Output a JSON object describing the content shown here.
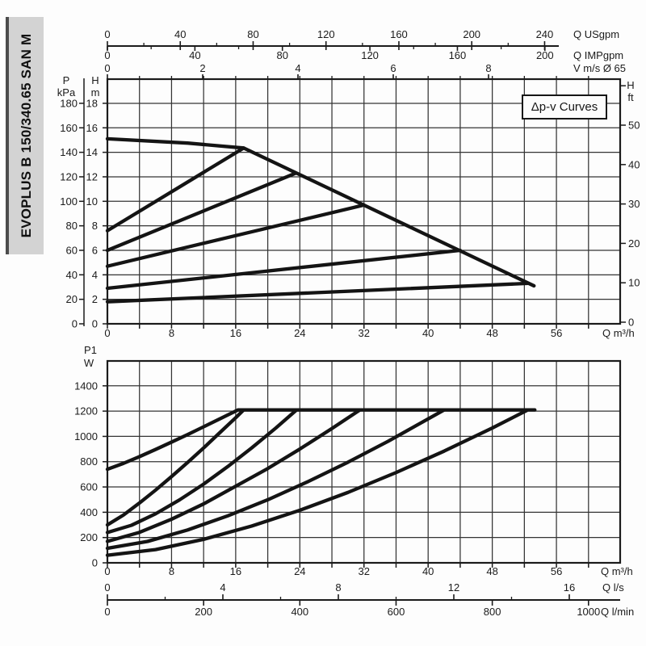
{
  "sidebar": {
    "model": "EVOPLUS B 150/340.65 SAN M"
  },
  "badge": "Δp-v Curves",
  "colors": {
    "ink": "#1b1b1b",
    "grid": "#343434",
    "curve": "#141414",
    "sidebar_bg": "#d3d3d3",
    "sidebar_edge": "#4c4c4c"
  },
  "chart_data": [
    {
      "id": "head-flow-chart",
      "type": "line",
      "title": "Δp-v Curves",
      "xlabel": "Q m³/h",
      "ylabel": "H m",
      "xlim": [
        0,
        64
      ],
      "ylim": [
        0,
        20
      ],
      "grid": "on",
      "x_axes": {
        "m3h": {
          "label": "Q m³/h",
          "major": [
            0,
            8,
            16,
            24,
            32,
            40,
            48,
            56
          ],
          "tick_step": 4
        },
        "usgpm": {
          "label": "Q USgpm",
          "major": [
            0,
            40,
            80,
            120,
            160,
            200,
            240
          ],
          "minor": [
            20,
            60,
            100,
            140,
            180,
            220
          ]
        },
        "impgpm": {
          "label": "Q IMPgpm",
          "major": [
            0,
            40,
            80,
            120,
            160,
            200
          ],
          "minor": [
            20,
            60,
            100,
            140,
            180
          ]
        },
        "vms": {
          "label": "V m/s Ø 65",
          "major": [
            0,
            2,
            4,
            6,
            8
          ]
        }
      },
      "y_axes": {
        "kpa": {
          "label1": "P",
          "label2": "kPa",
          "ticks": [
            180,
            160,
            140,
            120,
            100,
            80,
            60,
            40,
            20,
            0
          ]
        },
        "m": {
          "label1": "H",
          "label2": "m",
          "ticks": [
            18,
            16,
            14,
            12,
            10,
            8,
            6,
            4,
            2,
            0
          ]
        },
        "ft": {
          "label1": "H",
          "label2": "ft",
          "ticks": [
            50,
            40,
            30,
            20,
            10,
            0
          ],
          "unlabeled_ticks": [
            60
          ]
        }
      },
      "series": [
        {
          "name": "max-speed-curve",
          "points": [
            [
              0,
              15.1
            ],
            [
              10,
              14.75
            ],
            [
              17,
              14.35
            ],
            [
              53.2,
              3.1
            ]
          ]
        },
        {
          "name": "dpv-setpoint-1",
          "points": [
            [
              0,
              7.6
            ],
            [
              17,
              14.35
            ]
          ]
        },
        {
          "name": "dpv-setpoint-2",
          "points": [
            [
              0,
              6.0
            ],
            [
              23.5,
              12.3
            ]
          ]
        },
        {
          "name": "dpv-setpoint-3",
          "points": [
            [
              0,
              4.7
            ],
            [
              32,
              9.7
            ]
          ]
        },
        {
          "name": "dpv-setpoint-4",
          "points": [
            [
              0,
              2.9
            ],
            [
              44,
              6.0
            ]
          ]
        },
        {
          "name": "dpv-setpoint-5",
          "points": [
            [
              0,
              1.8
            ],
            [
              52.5,
              3.3
            ]
          ]
        }
      ]
    },
    {
      "id": "power-flow-chart",
      "type": "line",
      "xlabel": "Q m³/h",
      "ylabel": "P1 W",
      "xlim": [
        0,
        64
      ],
      "ylim": [
        0,
        1600
      ],
      "grid": "on",
      "x_axes": {
        "m3h": {
          "label": "Q m³/h",
          "major": [
            0,
            8,
            16,
            24,
            32,
            40,
            48,
            56
          ],
          "tick_step": 4
        },
        "ls": {
          "label": "Q l/s",
          "major": [
            0,
            4,
            8,
            12,
            16
          ],
          "minor": [
            2,
            6,
            10,
            14
          ]
        },
        "lmin": {
          "label": "Q l/min",
          "major": [
            0,
            200,
            400,
            600,
            800,
            1000
          ]
        }
      },
      "y_axes": {
        "w": {
          "label1": "P1",
          "label2": "W",
          "ticks": [
            1400,
            1200,
            1000,
            800,
            600,
            400,
            200,
            0
          ]
        }
      },
      "series": [
        {
          "name": "power-max-speed",
          "points": [
            [
              0,
              740
            ],
            [
              2,
              787
            ],
            [
              4,
              840
            ],
            [
              6,
              897
            ],
            [
              8,
              955
            ],
            [
              10,
              1014
            ],
            [
              12,
              1076
            ],
            [
              14,
              1138
            ],
            [
              16.3,
              1210
            ],
            [
              53.3,
              1210
            ]
          ]
        },
        {
          "name": "power-dpv-1",
          "points": [
            [
              0,
              300
            ],
            [
              2,
              378
            ],
            [
              4,
              473
            ],
            [
              6,
              575
            ],
            [
              8,
              682
            ],
            [
              10,
              794
            ],
            [
              12,
              909
            ],
            [
              14,
              1028
            ],
            [
              16,
              1148
            ],
            [
              17,
              1210
            ]
          ]
        },
        {
          "name": "power-dpv-2",
          "points": [
            [
              0,
              240
            ],
            [
              3,
              297
            ],
            [
              6,
              388
            ],
            [
              9,
              498
            ],
            [
              12,
              623
            ],
            [
              15,
              761
            ],
            [
              18,
              909
            ],
            [
              21,
              1066
            ],
            [
              23.6,
              1210
            ]
          ]
        },
        {
          "name": "power-dpv-3",
          "points": [
            [
              0,
              170
            ],
            [
              4,
              241
            ],
            [
              8,
              345
            ],
            [
              12,
              466
            ],
            [
              16,
              606
            ],
            [
              20,
              746
            ],
            [
              24,
              900
            ],
            [
              28,
              1062
            ],
            [
              31.5,
              1210
            ]
          ]
        },
        {
          "name": "power-dpv-4",
          "points": [
            [
              0,
              115
            ],
            [
              5,
              169
            ],
            [
              10,
              260
            ],
            [
              15,
              371
            ],
            [
              20,
              499
            ],
            [
              25,
              642
            ],
            [
              30,
              796
            ],
            [
              35,
              961
            ],
            [
              38,
              1067
            ],
            [
              42,
              1210
            ]
          ]
        },
        {
          "name": "power-dpv-5",
          "points": [
            [
              0,
              60
            ],
            [
              6,
              105
            ],
            [
              12,
              186
            ],
            [
              18,
              291
            ],
            [
              24,
              416
            ],
            [
              30,
              557
            ],
            [
              36,
              714
            ],
            [
              42,
              884
            ],
            [
              48,
              1066
            ],
            [
              52.3,
              1205
            ]
          ]
        }
      ]
    }
  ]
}
